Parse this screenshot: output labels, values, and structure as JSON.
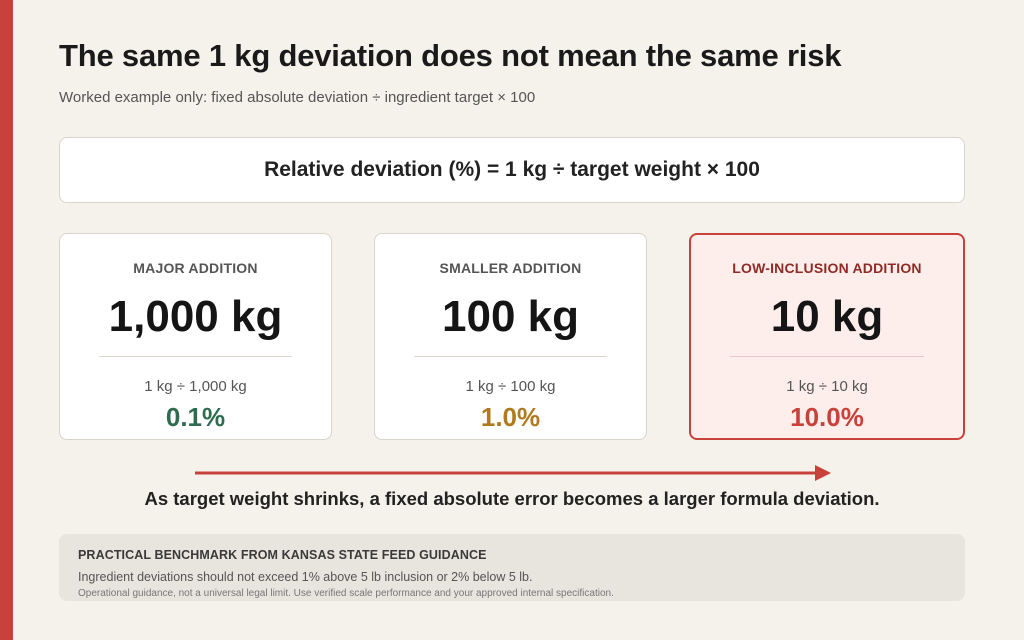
{
  "title": "The same 1 kg deviation does not mean the same risk",
  "subtitle": "Worked example only: fixed absolute deviation ÷ ingredient target × 100",
  "formula": "Relative deviation (%) = 1 kg ÷ target weight × 100",
  "cards": [
    {
      "label": "MAJOR ADDITION",
      "weight": "1,000 kg",
      "calc": "1 kg ÷ 1,000 kg",
      "percent": "0.1%",
      "value": 0.1,
      "color": "#2e6b4f"
    },
    {
      "label": "SMALLER ADDITION",
      "weight": "100 kg",
      "calc": "1 kg ÷ 100 kg",
      "percent": "1.0%",
      "value": 1.0,
      "color": "#b07a1e"
    },
    {
      "label": "LOW-INCLUSION ADDITION",
      "weight": "10 kg",
      "calc": "1 kg ÷ 10 kg",
      "percent": "10.0%",
      "value": 10.0,
      "color": "#c8413a",
      "highlighted": true
    }
  ],
  "caption": "As target weight shrinks, a fixed absolute error becomes a larger formula deviation.",
  "note": {
    "title": "PRACTICAL BENCHMARK FROM KANSAS STATE FEED GUIDANCE",
    "text": "Ingredient deviations should not exceed 1% above 5 lb inclusion or 2% below 5 lb.",
    "small": "Operational guidance, not a universal legal limit. Use verified scale performance and your approved internal specification."
  },
  "colors": {
    "accent": "#c8413a",
    "background": "#f5f2ec",
    "low": "#2e6b4f",
    "medium": "#b07a1e",
    "high": "#c8413a"
  },
  "icons": {
    "arrow": "arrow-right-icon"
  }
}
